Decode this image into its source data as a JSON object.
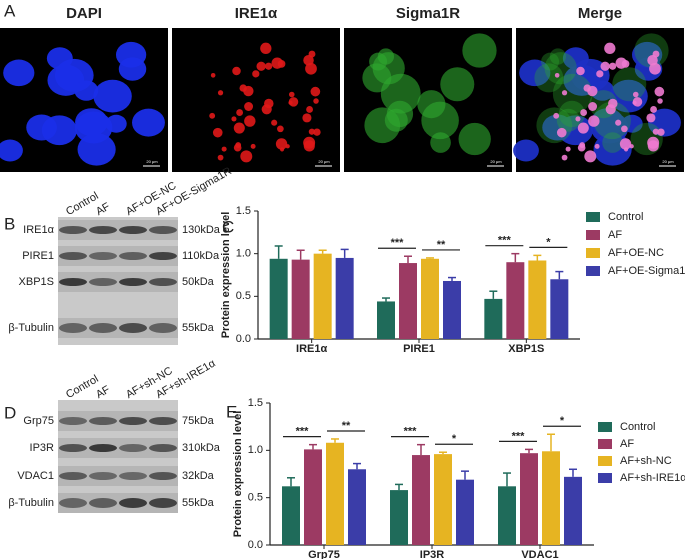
{
  "panel_labels": [
    "A",
    "B",
    "C",
    "D",
    "E"
  ],
  "images": {
    "titles": [
      "DAPI",
      "IRE1α",
      "Sigma1R",
      "Merge"
    ],
    "scale_bar": "20 μm"
  },
  "blot_b": {
    "columns": [
      "Control",
      "AF",
      "AF+OE-NC",
      "AF+OE-Sigma1R"
    ],
    "rows": [
      {
        "protein": "IRE1α",
        "size": "130kDa"
      },
      {
        "protein": "PIRE1",
        "size": "110kDa"
      },
      {
        "protein": "XBP1S",
        "size": "50kDa"
      },
      {
        "protein": "β-Tubulin",
        "size": "55kDa"
      }
    ]
  },
  "blot_d": {
    "columns": [
      "Control",
      "AF",
      "AF+sh-NC",
      "AF+sh-IRE1α"
    ],
    "rows": [
      {
        "protein": "Grp75",
        "size": "75kDa"
      },
      {
        "protein": "IP3R",
        "size": "310kDa"
      },
      {
        "protein": "VDAC1",
        "size": "32kDa"
      },
      {
        "protein": "β-Tubulin",
        "size": "55kDa"
      }
    ]
  },
  "chart_data": [
    {
      "type": "bar",
      "y_label": "Protein expression level",
      "categories": [
        "IRE1α",
        "PIRE1",
        "XBP1S"
      ],
      "ylim": [
        0,
        1.5
      ],
      "yticks": [
        {
          "value": 0,
          "label": "0.0"
        },
        {
          "value": 0.5,
          "label": "0.5"
        },
        {
          "value": 1,
          "label": "1.0"
        },
        {
          "value": 1.5,
          "label": "1.5"
        }
      ],
      "legend": "right",
      "series": [
        {
          "name": "Control",
          "color": "#1f6b5a",
          "values": [
            0.94,
            0.44,
            0.47
          ],
          "errors": [
            0.15,
            0.04,
            0.09
          ]
        },
        {
          "name": "AF",
          "color": "#9c3a63",
          "values": [
            0.93,
            0.89,
            0.9
          ],
          "errors": [
            0.11,
            0.08,
            0.1
          ]
        },
        {
          "name": "AF+OE-NC",
          "color": "#e6b422",
          "values": [
            1.0,
            0.94,
            0.92
          ],
          "errors": [
            0.04,
            0.01,
            0.06
          ]
        },
        {
          "name": "AF+OE-Sigma1R",
          "color": "#3b3da8",
          "values": [
            0.95,
            0.68,
            0.7
          ],
          "errors": [
            0.1,
            0.04,
            0.09
          ]
        }
      ],
      "annotations": [
        {
          "category": "PIRE1",
          "series": [
            "Control",
            "AF"
          ],
          "label": "***"
        },
        {
          "category": "PIRE1",
          "series": [
            "AF+OE-NC",
            "AF+OE-Sigma1R"
          ],
          "label": "**"
        },
        {
          "category": "XBP1S",
          "series": [
            "Control",
            "AF"
          ],
          "label": "***"
        },
        {
          "category": "XBP1S",
          "series": [
            "AF+OE-NC",
            "AF+OE-Sigma1R"
          ],
          "label": "*"
        }
      ]
    },
    {
      "type": "bar",
      "y_label": "Protein expression level",
      "categories": [
        "Grp75",
        "IP3R",
        "VDAC1"
      ],
      "ylim": [
        0,
        1.5
      ],
      "yticks": [
        {
          "value": 0,
          "label": "0.0"
        },
        {
          "value": 0.5,
          "label": "0.5"
        },
        {
          "value": 1,
          "label": "1.0"
        },
        {
          "value": 1.5,
          "label": "1.5"
        }
      ],
      "legend": "right",
      "series": [
        {
          "name": "Control",
          "color": "#1f6b5a",
          "values": [
            0.62,
            0.58,
            0.62
          ],
          "errors": [
            0.09,
            0.06,
            0.14
          ]
        },
        {
          "name": "AF",
          "color": "#9c3a63",
          "values": [
            1.01,
            0.95,
            0.97
          ],
          "errors": [
            0.05,
            0.11,
            0.04
          ]
        },
        {
          "name": "AF+sh-NC",
          "color": "#e6b422",
          "values": [
            1.08,
            0.96,
            0.99
          ],
          "errors": [
            0.04,
            0.02,
            0.18
          ]
        },
        {
          "name": "AF+sh-IRE1α",
          "color": "#3b3da8",
          "values": [
            0.8,
            0.69,
            0.72
          ],
          "errors": [
            0.06,
            0.09,
            0.08
          ]
        }
      ],
      "annotations": [
        {
          "category": "Grp75",
          "series": [
            "Control",
            "AF"
          ],
          "label": "***"
        },
        {
          "category": "Grp75",
          "series": [
            "AF+sh-NC",
            "AF+sh-IRE1α"
          ],
          "label": "**"
        },
        {
          "category": "IP3R",
          "series": [
            "Control",
            "AF"
          ],
          "label": "***"
        },
        {
          "category": "IP3R",
          "series": [
            "AF+sh-NC",
            "AF+sh-IRE1α"
          ],
          "label": "*"
        },
        {
          "category": "VDAC1",
          "series": [
            "Control",
            "AF"
          ],
          "label": "***"
        },
        {
          "category": "VDAC1",
          "series": [
            "AF+sh-NC",
            "AF+sh-IRE1α"
          ],
          "label": "*"
        }
      ]
    }
  ]
}
